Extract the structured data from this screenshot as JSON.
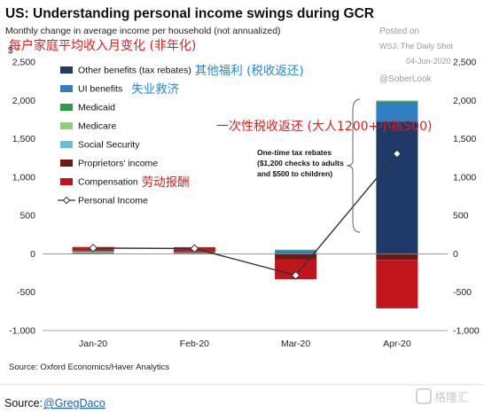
{
  "header": {
    "title": "US: Understanding personal income swings during GCR",
    "subtitle": "Monthly change in average income per household (not annualized)",
    "subtitle_cn": "每户家庭平均收入月变化 (非年化)",
    "posted_on": "Posted on",
    "source_publisher": "WSJ: The Daily Shot",
    "date": "04-Jun-2020",
    "handle": "@SoberLook"
  },
  "footer": {
    "source_note": "Source: Oxford Economics/Haver Analytics",
    "credit_prefix": "Source: ",
    "credit_link": "@GregDaco",
    "watermark": "格隆汇"
  },
  "annotations": {
    "tax_rebate_note": [
      "One-time tax rebates",
      "($1,200 checks to adults",
      "and $500 to children)"
    ],
    "tax_rebate_cn": "一次性税收返还 (大人1200+小孩500)"
  },
  "colors": {
    "other_benefits": "#1f3a68",
    "ui_benefits": "#2f7fc1",
    "medicaid": "#2e9a4a",
    "medicare": "#8fcf7a",
    "social_security": "#5fc3d8",
    "proprietors_income": "#6b1a14",
    "compensation": "#c0161b",
    "personal_income": "#333333",
    "title": "#111111",
    "annotation_red": "#e31c1c",
    "annotation_blue": "#1e88e5"
  },
  "chart_data": {
    "type": "bar",
    "stacked": true,
    "categories": [
      "Jan-20",
      "Feb-20",
      "Mar-20",
      "Apr-20"
    ],
    "y_unit_label": "$",
    "ylim": [
      -1000,
      2500
    ],
    "y_ticks": [
      -1000,
      -500,
      0,
      500,
      1000,
      1500,
      2000,
      2500
    ],
    "y_tick_labels": [
      "-1,000",
      "-500",
      "0",
      "500",
      "1,000",
      "1,500",
      "2,000",
      "2,500"
    ],
    "grid": false,
    "legend_position": "top-left",
    "series": [
      {
        "name": "Other benefits (tax rebates)",
        "name_cn": "其他福利 (税收返还)",
        "color_key": "other_benefits",
        "values": [
          5,
          3,
          3,
          1720
        ]
      },
      {
        "name": "UI benefits",
        "name_cn": "失业救济",
        "color_key": "ui_benefits",
        "values": [
          5,
          3,
          45,
          255
        ]
      },
      {
        "name": "Medicaid",
        "color_key": "medicaid",
        "values": [
          8,
          5,
          3,
          15
        ]
      },
      {
        "name": "Medicare",
        "color_key": "medicare",
        "values": [
          6,
          5,
          2,
          5
        ]
      },
      {
        "name": "Social Security",
        "color_key": "social_security",
        "values": [
          10,
          4,
          3,
          5
        ]
      },
      {
        "name": "Proprietors' income",
        "color_key": "proprietors_income",
        "values": [
          10,
          12,
          -70,
          -80
        ]
      },
      {
        "name": "Compensation",
        "name_cn": "劳动报酬",
        "color_key": "compensation",
        "values": [
          45,
          55,
          -260,
          -630
        ]
      },
      {
        "name": "Personal Income",
        "type": "line",
        "color_key": "personal_income",
        "values": [
          75,
          70,
          -280,
          1305
        ]
      }
    ]
  }
}
